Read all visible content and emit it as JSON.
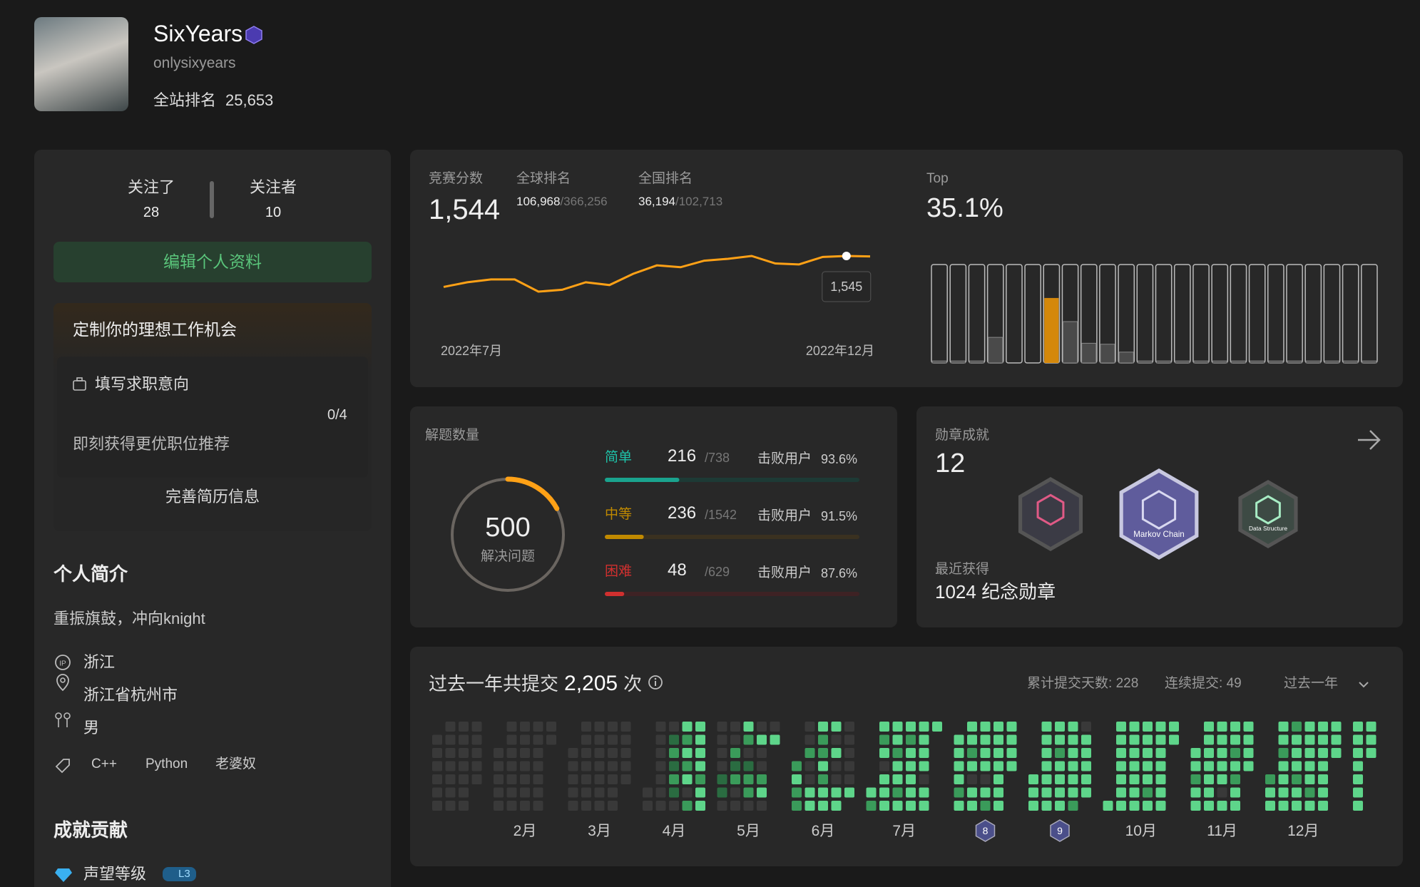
{
  "profile": {
    "name": "SixYears",
    "username": "onlysixyears",
    "rank_label": "全站排名",
    "rank": "25,653"
  },
  "follow": {
    "following_label": "关注了",
    "following": 28,
    "followers_label": "关注者",
    "followers": 10
  },
  "edit_button": "编辑个人资料",
  "job": {
    "title": "定制你的理想工作机会",
    "intent": "填写求职意向",
    "progress": "0/4",
    "hint": "即刻获得更优职位推荐",
    "resume": "完善简历信息"
  },
  "bio": {
    "title": "个人简介",
    "text": "重振旗鼓，冲向knight",
    "ip": "浙江",
    "location": "浙江省杭州市",
    "gender": "男",
    "tags": [
      "C++",
      "Python",
      "老婆奴"
    ]
  },
  "achievements": {
    "title": "成就贡献",
    "reputation": "声望等级",
    "level": "L3"
  },
  "contest": {
    "rating_label": "竞赛分数",
    "rating": "1,544",
    "global_label": "全球排名",
    "global_rank": "106,968",
    "global_total": "/366,256",
    "national_label": "全国排名",
    "national_rank": "36,194",
    "national_total": "/102,713",
    "top_label": "Top",
    "top": "35.1%"
  },
  "chart_data": [
    {
      "type": "line",
      "x_labels": [
        "2022年7月",
        "2022年12月"
      ],
      "color": "#ffa116",
      "values": [
        1479,
        1489,
        1495,
        1495,
        1469,
        1473,
        1489,
        1483,
        1507,
        1525,
        1521,
        1535,
        1539,
        1545,
        1529,
        1527,
        1543,
        1545,
        1544
      ],
      "tooltip": {
        "index": 17,
        "label": "1,545"
      }
    },
    {
      "type": "bar",
      "values": [
        2,
        2,
        2,
        26,
        0,
        0,
        66,
        42,
        20,
        19,
        11,
        2,
        2,
        2,
        2,
        2,
        2,
        2,
        2,
        2,
        2,
        2,
        2,
        2
      ],
      "ylim": [
        0,
        100
      ],
      "color": "#4a4a4a",
      "highlight_index": 6,
      "highlight_color": "#d4880b"
    }
  ],
  "solved": {
    "title": "解题数量",
    "count": 500,
    "count_label": "解决问题",
    "color": "#ffa116",
    "levels": [
      {
        "name": "简单",
        "solved": 216,
        "total": 738,
        "total_label": "/738",
        "beat_label": "击败用户",
        "beat": "93.6%",
        "color": "#1aa38e",
        "track": "#1d3a35"
      },
      {
        "name": "中等",
        "solved": 236,
        "total": 1542,
        "total_label": "/1542",
        "beat_label": "击败用户",
        "beat": "91.5%",
        "color": "#c18a00",
        "track": "#3a3120"
      },
      {
        "name": "困难",
        "solved": 48,
        "total": 629,
        "total_label": "/629",
        "beat_label": "击败用户",
        "beat": "87.6%",
        "color": "#d0302f",
        "track": "#3e2224"
      }
    ]
  },
  "badges": {
    "title": "勋章成就",
    "count": 12,
    "recent_label": "最近获得",
    "recent": "1024 纪念勋章",
    "items": [
      {
        "color": "#3b3b45",
        "accent": "#e05a86"
      },
      {
        "color": "#5f5c9c",
        "accent": "#d8d8f0",
        "caption": "Markov Chain"
      },
      {
        "color": "#3d4a44",
        "accent": "#a7ecc4",
        "caption": "Data Structure"
      }
    ]
  },
  "submissions": {
    "title": "过去一年共提交",
    "total": "2,205",
    "unit": "次",
    "active_days_label": "累计提交天数:",
    "active_days": 228,
    "streak_label": "连续提交:",
    "streak": 49,
    "range": "过去一年",
    "level_colors": [
      "#393939",
      "#2a6c41",
      "#3a9b5a",
      "#5ed58a"
    ],
    "months": [
      {
        "weeks": [
          [
            null,
            0,
            0,
            0,
            0,
            0,
            0
          ],
          [
            0,
            0,
            0,
            0,
            0,
            0,
            0
          ],
          [
            0,
            0,
            0,
            0,
            0,
            0,
            0
          ],
          [
            0,
            0,
            0,
            0,
            0,
            null,
            null
          ]
        ]
      },
      {
        "label": "2月",
        "weeks": [
          [
            null,
            null,
            0,
            0,
            0,
            0,
            0
          ],
          [
            0,
            0,
            0,
            0,
            0,
            0,
            0
          ],
          [
            0,
            0,
            0,
            0,
            0,
            0,
            0
          ],
          [
            0,
            0,
            0,
            0,
            0,
            0,
            0
          ],
          [
            0,
            0,
            null,
            null,
            null,
            null,
            null
          ]
        ]
      },
      {
        "label": "3月",
        "weeks": [
          [
            null,
            null,
            0,
            0,
            0,
            0,
            0
          ],
          [
            0,
            0,
            0,
            0,
            0,
            0,
            0
          ],
          [
            0,
            0,
            0,
            0,
            0,
            0,
            0
          ],
          [
            0,
            0,
            0,
            0,
            0,
            0,
            0
          ],
          [
            0,
            0,
            0,
            0,
            0,
            null,
            null
          ]
        ]
      },
      {
        "label": "4月",
        "weeks": [
          [
            null,
            null,
            null,
            null,
            null,
            0,
            0
          ],
          [
            0,
            0,
            0,
            0,
            0,
            0,
            0
          ],
          [
            0,
            1,
            2,
            1,
            2,
            1,
            0
          ],
          [
            3,
            2,
            3,
            2,
            3,
            0,
            2
          ],
          [
            3,
            3,
            3,
            3,
            2,
            3,
            3
          ]
        ]
      },
      {
        "label": "5月",
        "weeks": [
          [
            0,
            0,
            0,
            0,
            1,
            1,
            0
          ],
          [
            0,
            0,
            2,
            1,
            2,
            0,
            0
          ],
          [
            3,
            2,
            0,
            1,
            2,
            2,
            0
          ],
          [
            0,
            3,
            0,
            0,
            2,
            3,
            0
          ],
          [
            0,
            3,
            null,
            null,
            null,
            null,
            null
          ]
        ]
      },
      {
        "label": "6月",
        "weeks": [
          [
            null,
            null,
            null,
            2,
            3,
            2,
            2
          ],
          [
            0,
            0,
            2,
            0,
            0,
            3,
            3
          ],
          [
            3,
            2,
            2,
            3,
            2,
            3,
            3
          ],
          [
            3,
            0,
            3,
            0,
            0,
            3,
            3
          ],
          [
            0,
            0,
            0,
            0,
            0,
            3,
            null
          ]
        ]
      },
      {
        "label": "7月",
        "weeks": [
          [
            null,
            null,
            null,
            null,
            null,
            3,
            2
          ],
          [
            3,
            2,
            3,
            0,
            3,
            3,
            3
          ],
          [
            3,
            3,
            2,
            3,
            3,
            2,
            3
          ],
          [
            3,
            2,
            3,
            3,
            3,
            3,
            3
          ],
          [
            3,
            3,
            3,
            3,
            0,
            3,
            3
          ],
          [
            3,
            null,
            null,
            null,
            null,
            null,
            null
          ]
        ]
      },
      {
        "badge": "8",
        "weeks": [
          [
            null,
            3,
            3,
            3,
            3,
            2,
            3
          ],
          [
            3,
            3,
            2,
            3,
            0,
            3,
            3
          ],
          [
            3,
            3,
            3,
            3,
            0,
            3,
            2
          ],
          [
            3,
            3,
            3,
            3,
            3,
            3,
            3
          ],
          [
            3,
            3,
            3,
            3,
            null,
            null,
            null
          ]
        ]
      },
      {
        "badge": "9",
        "weeks": [
          [
            null,
            null,
            null,
            null,
            3,
            3,
            3
          ],
          [
            3,
            3,
            3,
            3,
            3,
            3,
            3
          ],
          [
            3,
            3,
            2,
            3,
            3,
            3,
            3
          ],
          [
            3,
            3,
            3,
            3,
            3,
            3,
            2
          ],
          [
            0,
            3,
            3,
            3,
            3,
            3,
            null
          ]
        ]
      },
      {
        "label": "10月",
        "weeks": [
          [
            null,
            null,
            null,
            null,
            null,
            null,
            3
          ],
          [
            3,
            3,
            3,
            3,
            3,
            3,
            3
          ],
          [
            3,
            3,
            3,
            3,
            3,
            3,
            3
          ],
          [
            3,
            3,
            3,
            3,
            3,
            2,
            3
          ],
          [
            3,
            3,
            3,
            3,
            3,
            3,
            3
          ],
          [
            3,
            3,
            null,
            null,
            null,
            null,
            null
          ]
        ]
      },
      {
        "label": "11月",
        "weeks": [
          [
            null,
            null,
            3,
            3,
            2,
            3,
            3
          ],
          [
            3,
            3,
            3,
            3,
            3,
            3,
            3
          ],
          [
            3,
            3,
            3,
            3,
            3,
            0,
            3
          ],
          [
            3,
            3,
            2,
            3,
            2,
            3,
            3
          ],
          [
            3,
            3,
            3,
            3,
            null,
            null,
            null
          ]
        ]
      },
      {
        "label": "12月",
        "weeks": [
          [
            null,
            null,
            null,
            null,
            2,
            3,
            3
          ],
          [
            3,
            3,
            2,
            3,
            3,
            3,
            3
          ],
          [
            2,
            3,
            3,
            3,
            2,
            3,
            3
          ],
          [
            3,
            3,
            3,
            3,
            3,
            2,
            3
          ],
          [
            3,
            3,
            3,
            3,
            3,
            3,
            3
          ],
          [
            3,
            3,
            3,
            null,
            null,
            null,
            null
          ]
        ]
      },
      {
        "weeks": [
          [
            3,
            3,
            3,
            3,
            3,
            3,
            3
          ],
          [
            3,
            3,
            3,
            null,
            null,
            null,
            null
          ]
        ]
      }
    ]
  }
}
